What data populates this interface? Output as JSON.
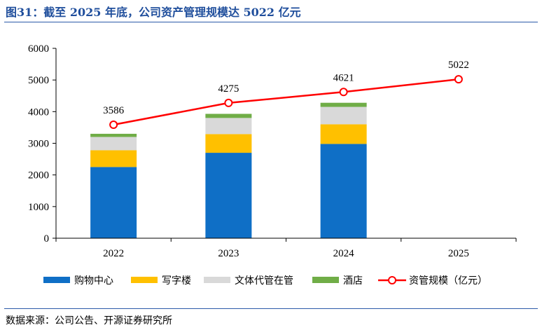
{
  "title": "图31：截至 2025 年底，公司资产管理规模达 5022 亿元",
  "source": "数据来源：公司公告、开源证券研究所",
  "chart_data": {
    "type": "bar",
    "stacked": true,
    "categories": [
      "2022",
      "2023",
      "2024",
      "2025"
    ],
    "ylim": [
      0,
      6000
    ],
    "yticks": [
      0,
      1000,
      2000,
      3000,
      4000,
      5000,
      6000
    ],
    "grid": false,
    "legend_position": "bottom",
    "series": [
      {
        "name": "购物中心",
        "color": "#0f6fc6",
        "values": [
          2250,
          2700,
          2980,
          null
        ]
      },
      {
        "name": "写字楼",
        "color": "#ffc000",
        "values": [
          530,
          590,
          620,
          null
        ]
      },
      {
        "name": "文体代管在管",
        "color": "#d9d9d9",
        "values": [
          420,
          510,
          550,
          null
        ]
      },
      {
        "name": "酒店",
        "color": "#70ad47",
        "values": [
          100,
          130,
          130,
          null
        ]
      }
    ],
    "line": {
      "name": "资管规模（亿元）",
      "color": "#ff0000",
      "values": [
        3586,
        4275,
        4621,
        5022
      ],
      "labels": [
        "3586",
        "4275",
        "4621",
        "5022"
      ]
    }
  }
}
